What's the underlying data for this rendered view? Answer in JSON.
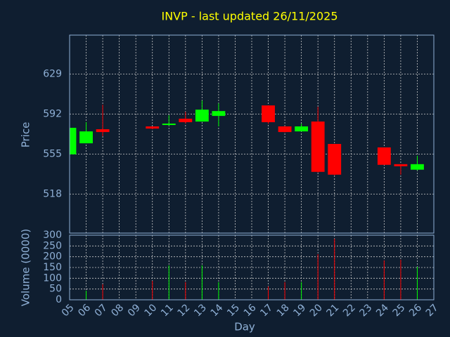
{
  "chart_data": {
    "type": "candlestick",
    "title": "INVP - last updated 26/11/2025",
    "x_label": "Day",
    "y_label": "Price",
    "y2_label": "Volume (0000)",
    "categories": [
      "05",
      "06",
      "07",
      "08",
      "09",
      "10",
      "11",
      "12",
      "13",
      "14",
      "15",
      "16",
      "17",
      "18",
      "19",
      "20",
      "21",
      "22",
      "23",
      "24",
      "25",
      "26",
      "27"
    ],
    "open": [
      554.8,
      565.0,
      578.0,
      null,
      null,
      580.6,
      581.9,
      587.7,
      585.1,
      590.3,
      null,
      null,
      600.0,
      580.6,
      576.0,
      585.1,
      564.4,
      null,
      null,
      561.2,
      545.7,
      540.6,
      null
    ],
    "high": [
      579.3,
      584.5,
      600.6,
      null,
      null,
      580.6,
      590.9,
      594.1,
      604.5,
      601.9,
      null,
      null,
      600.0,
      581.0,
      583.2,
      598.7,
      564.4,
      null,
      null,
      561.2,
      545.7,
      553.5,
      null
    ],
    "low": [
      554.8,
      565.0,
      571.5,
      null,
      null,
      578.0,
      581.2,
      583.2,
      585.0,
      580.6,
      null,
      null,
      583.0,
      575.0,
      576.0,
      538.0,
      535.4,
      null,
      null,
      545.0,
      536.0,
      540.0,
      null
    ],
    "close": [
      579.3,
      576.0,
      575.4,
      null,
      null,
      578.6,
      583.2,
      584.5,
      596.1,
      594.8,
      null,
      null,
      584.5,
      575.4,
      580.6,
      538.6,
      536.0,
      null,
      null,
      545.1,
      543.8,
      545.7,
      null
    ],
    "volume": [
      null,
      42,
      72,
      null,
      null,
      88,
      160,
      82,
      160,
      82,
      null,
      null,
      62,
      82,
      82,
      212,
      284,
      null,
      null,
      183,
      186,
      153,
      null
    ],
    "up_color": "#00ff00",
    "down_color": "#ff0000",
    "ylim": [
      482,
      665
    ],
    "yticks": [
      518,
      555,
      592,
      629
    ],
    "y2lim": [
      0,
      300
    ],
    "y2ticks": [
      0,
      50,
      100,
      150,
      200,
      250,
      300
    ],
    "grid": true
  }
}
